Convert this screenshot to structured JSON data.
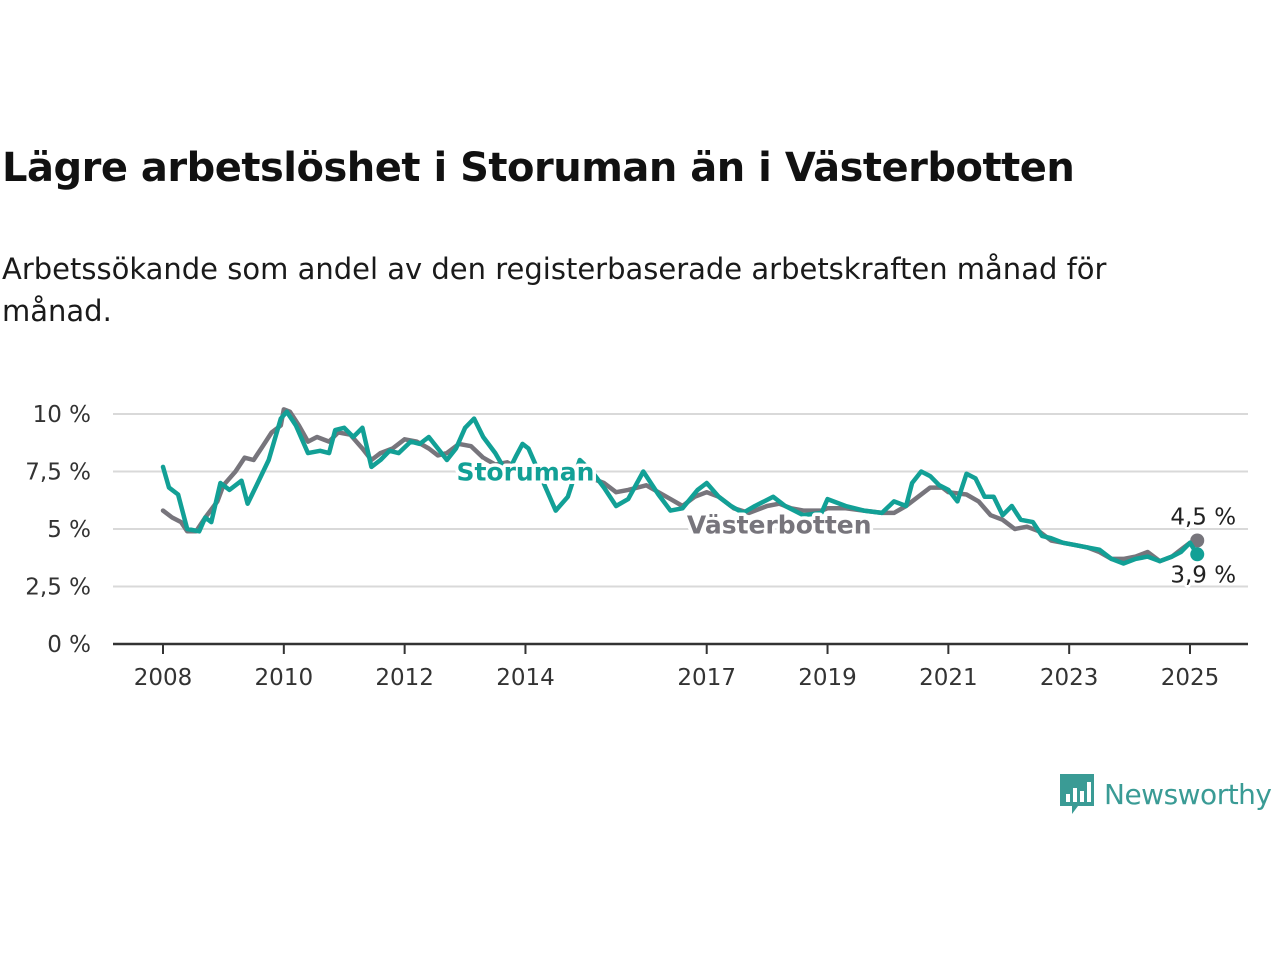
{
  "title": "Lägre arbetslöshet i Storuman än i Västerbotten",
  "subtitle": "Arbetssökande som andel av den registerbaserade arbetskraften månad för månad.",
  "brand": {
    "name": "Newsworthy",
    "icon": "newsworthy-logo-icon",
    "color": "#3a9b95"
  },
  "chart_data": {
    "type": "line",
    "xlim": [
      2008,
      2025.5
    ],
    "ylim": [
      0,
      10
    ],
    "y_ticks": [
      {
        "value": 0,
        "label": "0 %"
      },
      {
        "value": 2.5,
        "label": "2,5 %"
      },
      {
        "value": 5,
        "label": "5 %"
      },
      {
        "value": 7.5,
        "label": "7,5 %"
      },
      {
        "value": 10,
        "label": "10 %"
      }
    ],
    "x_ticks": [
      {
        "value": 2008,
        "label": "2008"
      },
      {
        "value": 2010,
        "label": "2010"
      },
      {
        "value": 2012,
        "label": "2012"
      },
      {
        "value": 2014,
        "label": "2014"
      },
      {
        "value": 2017,
        "label": "2017"
      },
      {
        "value": 2019,
        "label": "2019"
      },
      {
        "value": 2021,
        "label": "2021"
      },
      {
        "value": 2023,
        "label": "2023"
      },
      {
        "value": 2025,
        "label": "2025"
      }
    ],
    "grid": true,
    "series": [
      {
        "name": "Västerbotten",
        "color": "#77757c",
        "end_label": "4,5 %",
        "points": [
          [
            2008.0,
            5.8
          ],
          [
            2008.15,
            5.5
          ],
          [
            2008.3,
            5.3
          ],
          [
            2008.4,
            4.9
          ],
          [
            2008.55,
            4.9
          ],
          [
            2008.7,
            5.5
          ],
          [
            2008.9,
            6.2
          ],
          [
            2009.0,
            6.9
          ],
          [
            2009.2,
            7.5
          ],
          [
            2009.35,
            8.1
          ],
          [
            2009.5,
            8.0
          ],
          [
            2009.65,
            8.6
          ],
          [
            2009.8,
            9.2
          ],
          [
            2009.95,
            9.5
          ],
          [
            2010.0,
            10.2
          ],
          [
            2010.1,
            10.1
          ],
          [
            2010.25,
            9.5
          ],
          [
            2010.4,
            8.8
          ],
          [
            2010.55,
            9.0
          ],
          [
            2010.75,
            8.8
          ],
          [
            2010.9,
            9.2
          ],
          [
            2011.1,
            9.1
          ],
          [
            2011.3,
            8.5
          ],
          [
            2011.45,
            8.0
          ],
          [
            2011.6,
            8.3
          ],
          [
            2011.8,
            8.5
          ],
          [
            2012.0,
            8.9
          ],
          [
            2012.2,
            8.8
          ],
          [
            2012.4,
            8.5
          ],
          [
            2012.55,
            8.2
          ],
          [
            2012.7,
            8.3
          ],
          [
            2012.9,
            8.7
          ],
          [
            2013.1,
            8.6
          ],
          [
            2013.3,
            8.1
          ],
          [
            2013.5,
            7.8
          ],
          [
            2013.7,
            7.9
          ],
          [
            2013.9,
            7.6
          ],
          [
            2014.0,
            7.7
          ],
          [
            2014.3,
            7.6
          ],
          [
            2014.5,
            7.3
          ],
          [
            2014.7,
            7.5
          ],
          [
            2015.0,
            7.3
          ],
          [
            2015.3,
            7.0
          ],
          [
            2015.5,
            6.6
          ],
          [
            2015.7,
            6.7
          ],
          [
            2016.0,
            6.9
          ],
          [
            2016.2,
            6.6
          ],
          [
            2016.4,
            6.3
          ],
          [
            2016.6,
            6.0
          ],
          [
            2016.8,
            6.4
          ],
          [
            2017.0,
            6.6
          ],
          [
            2017.2,
            6.4
          ],
          [
            2017.45,
            5.9
          ],
          [
            2017.7,
            5.7
          ],
          [
            2018.0,
            6.0
          ],
          [
            2018.2,
            6.1
          ],
          [
            2018.4,
            5.9
          ],
          [
            2018.6,
            5.8
          ],
          [
            2018.9,
            5.8
          ],
          [
            2019.0,
            5.9
          ],
          [
            2019.3,
            5.9
          ],
          [
            2019.6,
            5.8
          ],
          [
            2019.9,
            5.7
          ],
          [
            2020.1,
            5.7
          ],
          [
            2020.3,
            6.0
          ],
          [
            2020.5,
            6.4
          ],
          [
            2020.7,
            6.8
          ],
          [
            2020.9,
            6.8
          ],
          [
            2021.0,
            6.6
          ],
          [
            2021.3,
            6.5
          ],
          [
            2021.5,
            6.2
          ],
          [
            2021.7,
            5.6
          ],
          [
            2021.9,
            5.4
          ],
          [
            2022.1,
            5.0
          ],
          [
            2022.3,
            5.1
          ],
          [
            2022.5,
            4.9
          ],
          [
            2022.7,
            4.5
          ],
          [
            2022.9,
            4.4
          ],
          [
            2023.1,
            4.3
          ],
          [
            2023.3,
            4.2
          ],
          [
            2023.5,
            4.0
          ],
          [
            2023.7,
            3.7
          ],
          [
            2023.9,
            3.7
          ],
          [
            2024.1,
            3.8
          ],
          [
            2024.3,
            4.0
          ],
          [
            2024.5,
            3.6
          ],
          [
            2024.7,
            3.8
          ],
          [
            2024.85,
            4.1
          ],
          [
            2025.0,
            4.4
          ],
          [
            2025.12,
            4.5
          ]
        ]
      },
      {
        "name": "Storuman",
        "color": "#12a096",
        "end_label": "3,9 %",
        "points": [
          [
            2008.0,
            7.7
          ],
          [
            2008.1,
            6.8
          ],
          [
            2008.25,
            6.5
          ],
          [
            2008.4,
            5.0
          ],
          [
            2008.6,
            4.9
          ],
          [
            2008.7,
            5.5
          ],
          [
            2008.8,
            5.3
          ],
          [
            2008.95,
            7.0
          ],
          [
            2009.1,
            6.7
          ],
          [
            2009.3,
            7.1
          ],
          [
            2009.4,
            6.1
          ],
          [
            2009.55,
            6.9
          ],
          [
            2009.75,
            8.0
          ],
          [
            2009.95,
            9.8
          ],
          [
            2010.05,
            10.1
          ],
          [
            2010.2,
            9.5
          ],
          [
            2010.4,
            8.3
          ],
          [
            2010.6,
            8.4
          ],
          [
            2010.75,
            8.3
          ],
          [
            2010.85,
            9.3
          ],
          [
            2011.0,
            9.4
          ],
          [
            2011.15,
            9.0
          ],
          [
            2011.3,
            9.4
          ],
          [
            2011.45,
            7.7
          ],
          [
            2011.6,
            8.0
          ],
          [
            2011.75,
            8.4
          ],
          [
            2011.9,
            8.3
          ],
          [
            2012.1,
            8.8
          ],
          [
            2012.25,
            8.7
          ],
          [
            2012.4,
            9.0
          ],
          [
            2012.55,
            8.5
          ],
          [
            2012.7,
            8.0
          ],
          [
            2012.85,
            8.5
          ],
          [
            2013.0,
            9.4
          ],
          [
            2013.15,
            9.8
          ],
          [
            2013.3,
            9.0
          ],
          [
            2013.5,
            8.3
          ],
          [
            2013.7,
            7.4
          ],
          [
            2013.85,
            8.2
          ],
          [
            2013.95,
            8.7
          ],
          [
            2014.05,
            8.5
          ],
          [
            2014.3,
            7.0
          ],
          [
            2014.5,
            5.8
          ],
          [
            2014.7,
            6.4
          ],
          [
            2014.9,
            8.0
          ],
          [
            2015.1,
            7.5
          ],
          [
            2015.3,
            6.8
          ],
          [
            2015.5,
            6.0
          ],
          [
            2015.7,
            6.3
          ],
          [
            2015.95,
            7.5
          ],
          [
            2016.2,
            6.5
          ],
          [
            2016.4,
            5.8
          ],
          [
            2016.6,
            5.9
          ],
          [
            2016.85,
            6.7
          ],
          [
            2017.0,
            7.0
          ],
          [
            2017.2,
            6.4
          ],
          [
            2017.4,
            6.0
          ],
          [
            2017.6,
            5.7
          ],
          [
            2017.8,
            6.0
          ],
          [
            2018.1,
            6.4
          ],
          [
            2018.3,
            6.0
          ],
          [
            2018.6,
            5.6
          ],
          [
            2018.9,
            5.7
          ],
          [
            2019.0,
            6.3
          ],
          [
            2019.3,
            6.0
          ],
          [
            2019.6,
            5.8
          ],
          [
            2019.9,
            5.7
          ],
          [
            2020.1,
            6.2
          ],
          [
            2020.3,
            6.0
          ],
          [
            2020.4,
            7.0
          ],
          [
            2020.55,
            7.5
          ],
          [
            2020.7,
            7.3
          ],
          [
            2020.85,
            6.9
          ],
          [
            2021.0,
            6.7
          ],
          [
            2021.15,
            6.2
          ],
          [
            2021.3,
            7.4
          ],
          [
            2021.45,
            7.2
          ],
          [
            2021.6,
            6.4
          ],
          [
            2021.75,
            6.4
          ],
          [
            2021.9,
            5.6
          ],
          [
            2022.05,
            6.0
          ],
          [
            2022.2,
            5.4
          ],
          [
            2022.4,
            5.3
          ],
          [
            2022.55,
            4.7
          ],
          [
            2022.7,
            4.6
          ],
          [
            2022.9,
            4.4
          ],
          [
            2023.1,
            4.3
          ],
          [
            2023.3,
            4.2
          ],
          [
            2023.5,
            4.1
          ],
          [
            2023.7,
            3.7
          ],
          [
            2023.9,
            3.5
          ],
          [
            2024.1,
            3.7
          ],
          [
            2024.3,
            3.8
          ],
          [
            2024.5,
            3.6
          ],
          [
            2024.7,
            3.8
          ],
          [
            2024.85,
            4.0
          ],
          [
            2025.0,
            4.4
          ],
          [
            2025.12,
            3.9
          ]
        ]
      }
    ],
    "label_positions": {
      "Storuman": {
        "x": 2014.0,
        "y": 7.5
      },
      "Västerbotten": {
        "x": 2018.2,
        "y": 5.2
      }
    }
  }
}
